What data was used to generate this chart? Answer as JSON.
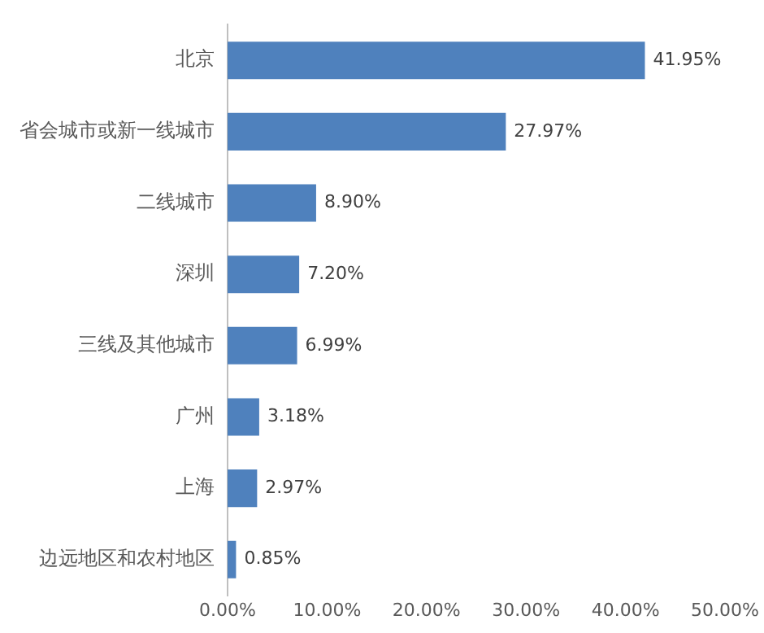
{
  "chart_data": {
    "type": "bar",
    "orientation": "horizontal",
    "categories": [
      "北京",
      "省会城市或新一线城市",
      "二线城市",
      "深圳",
      "三线及其他城市",
      "广州",
      "上海",
      "边远地区和农村地区"
    ],
    "values": [
      41.95,
      27.97,
      8.9,
      7.2,
      6.99,
      3.18,
      2.97,
      0.85
    ],
    "value_labels": [
      "41.95%",
      "27.97%",
      "8.90%",
      "7.20%",
      "6.99%",
      "3.18%",
      "2.97%",
      "0.85%"
    ],
    "color": "#4f81bd",
    "xlim": [
      0,
      50
    ],
    "xticks": [
      {
        "value": 0,
        "label": "0.00%"
      },
      {
        "value": 10,
        "label": "10.00%"
      },
      {
        "value": 20,
        "label": "20.00%"
      },
      {
        "value": 30,
        "label": "30.00%"
      },
      {
        "value": 40,
        "label": "40.00%"
      },
      {
        "value": 50,
        "label": "50.00%"
      }
    ],
    "grid": false,
    "legend": false
  }
}
